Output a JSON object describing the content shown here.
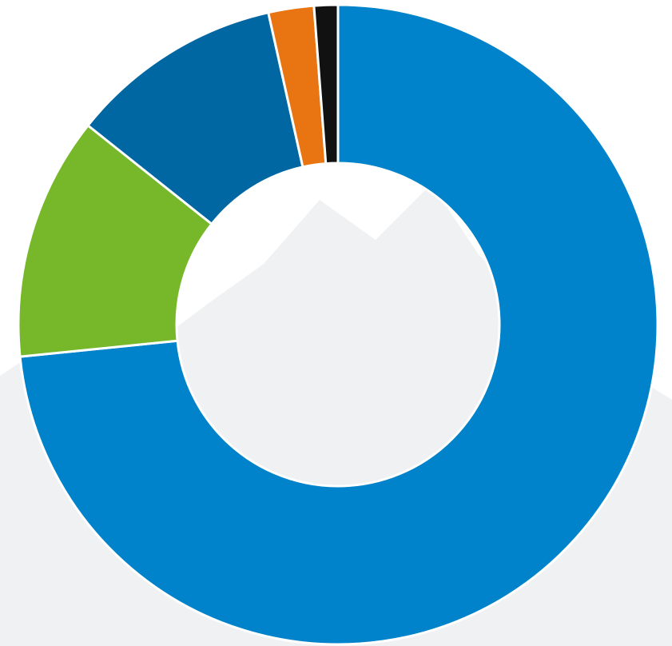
{
  "chart_data": {
    "type": "pie",
    "donut": true,
    "values": [
      73.4,
      12.3,
      10.8,
      2.3,
      1.2
    ],
    "colors": [
      "#0083ca",
      "#77b82a",
      "#0067a3",
      "#e87511",
      "#111111"
    ]
  }
}
